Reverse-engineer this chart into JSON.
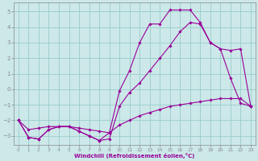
{
  "bg_color": "#cce8e8",
  "grid_color": "#99cccc",
  "line_color": "#990099",
  "xlabel": "Windchill (Refroidissement éolien,°C)",
  "xlim": [
    -0.5,
    23.5
  ],
  "ylim": [
    -3.6,
    5.6
  ],
  "yticks": [
    -3,
    -2,
    -1,
    0,
    1,
    2,
    3,
    4,
    5
  ],
  "xticks": [
    0,
    1,
    2,
    3,
    4,
    5,
    6,
    7,
    8,
    9,
    10,
    11,
    12,
    13,
    14,
    15,
    16,
    17,
    18,
    19,
    20,
    21,
    22,
    23
  ],
  "line1_x": [
    0,
    1,
    2,
    3,
    4,
    5,
    6,
    7,
    8,
    9,
    10,
    11,
    12,
    13,
    14,
    15,
    16,
    17,
    18,
    19,
    20,
    21,
    22,
    23
  ],
  "line1_y": [
    -2.0,
    -3.1,
    -3.2,
    -2.6,
    -2.4,
    -2.4,
    -2.7,
    -3.0,
    -3.3,
    -2.8,
    -0.1,
    1.2,
    3.0,
    4.2,
    4.2,
    5.1,
    5.1,
    5.1,
    4.3,
    3.0,
    2.6,
    0.7,
    -0.9,
    -1.1
  ],
  "line2_x": [
    0,
    1,
    2,
    3,
    4,
    5,
    6,
    7,
    8,
    9,
    10,
    11,
    12,
    13,
    14,
    15,
    16,
    17,
    18,
    19,
    20,
    21,
    22,
    23
  ],
  "line2_y": [
    -2.0,
    -3.1,
    -3.2,
    -2.6,
    -2.4,
    -2.4,
    -2.7,
    -3.0,
    -3.3,
    -3.2,
    -1.1,
    -0.2,
    0.4,
    1.2,
    2.0,
    2.8,
    3.7,
    4.3,
    4.2,
    3.0,
    2.6,
    2.5,
    2.6,
    -1.1
  ],
  "line3_x": [
    0,
    1,
    2,
    3,
    4,
    5,
    6,
    7,
    8,
    9,
    10,
    11,
    12,
    13,
    14,
    15,
    16,
    17,
    18,
    19,
    20,
    21,
    22,
    23
  ],
  "line3_y": [
    -2.0,
    -2.6,
    -2.5,
    -2.4,
    -2.4,
    -2.4,
    -2.5,
    -2.6,
    -2.7,
    -2.8,
    -2.3,
    -2.0,
    -1.7,
    -1.5,
    -1.3,
    -1.1,
    -1.0,
    -0.9,
    -0.8,
    -0.7,
    -0.6,
    -0.6,
    -0.6,
    -1.1
  ]
}
